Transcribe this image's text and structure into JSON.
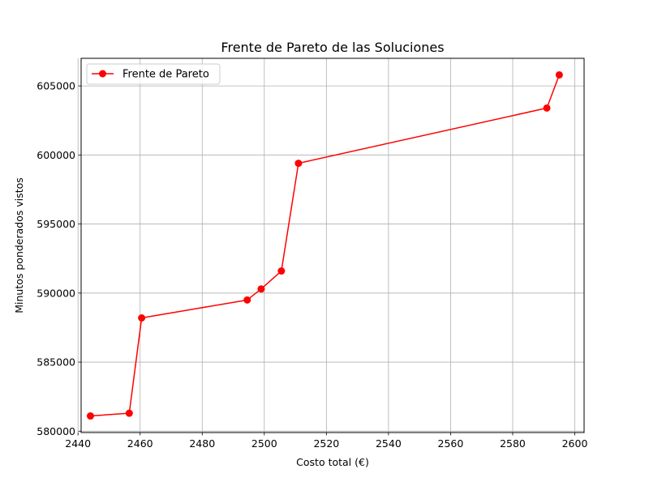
{
  "chart_data": {
    "type": "line",
    "title": "Frente de Pareto de las Soluciones",
    "xlabel": "Costo total (€)",
    "ylabel": "Minutos ponderados vistos",
    "xlim": [
      2441,
      2603
    ],
    "ylim": [
      579900,
      607000
    ],
    "xticks": [
      2440,
      2460,
      2480,
      2500,
      2520,
      2540,
      2560,
      2580,
      2600
    ],
    "yticks": [
      580000,
      585000,
      590000,
      595000,
      600000,
      605000
    ],
    "grid": true,
    "legend_position": "upper-left",
    "series": [
      {
        "name": "Frente de Pareto",
        "color": "#ff0000",
        "marker": "circle",
        "points": [
          {
            "x": 2444,
            "y": 581100
          },
          {
            "x": 2456.5,
            "y": 581300
          },
          {
            "x": 2460.5,
            "y": 588200
          },
          {
            "x": 2494.5,
            "y": 589500
          },
          {
            "x": 2499,
            "y": 590300
          },
          {
            "x": 2505.5,
            "y": 591600
          },
          {
            "x": 2511,
            "y": 599400
          },
          {
            "x": 2591,
            "y": 603400
          },
          {
            "x": 2595,
            "y": 605800
          }
        ]
      }
    ]
  }
}
